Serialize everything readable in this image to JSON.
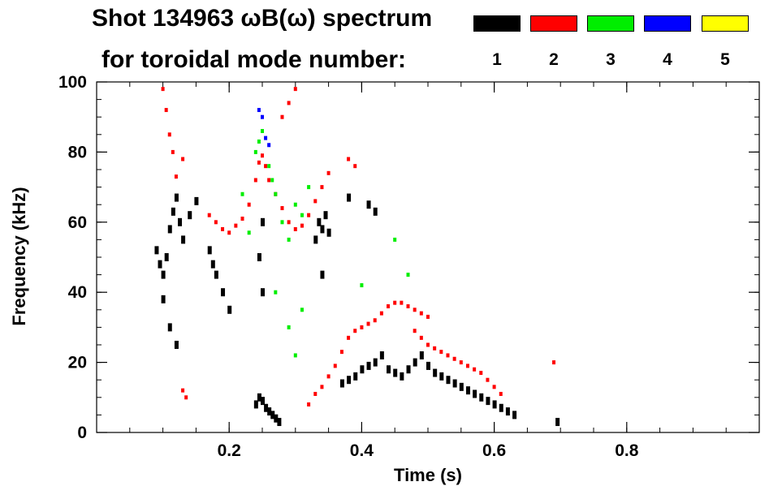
{
  "header": {
    "title_line1": "Shot 134963 ωB(ω) spectrum",
    "title_line2": "for toroidal mode number:"
  },
  "legend": [
    {
      "mode": "1",
      "color": "#000000"
    },
    {
      "mode": "2",
      "color": "#ff0000"
    },
    {
      "mode": "3",
      "color": "#00ee00"
    },
    {
      "mode": "4",
      "color": "#0000ff"
    },
    {
      "mode": "5",
      "color": "#ffff00"
    }
  ],
  "chart_data": {
    "type": "scatter",
    "title": "Shot 134963 ωB(ω) spectrum",
    "xlabel": "Time (s)",
    "ylabel": "Frequency (kHz)",
    "xlim": [
      0.0,
      1.0
    ],
    "ylim": [
      0,
      100
    ],
    "xticks": [
      0.2,
      0.4,
      0.6,
      0.8
    ],
    "xtick_labels": [
      "0.2",
      "0.4",
      "0.6",
      "0.8"
    ],
    "yticks": [
      0,
      20,
      40,
      60,
      80,
      100
    ],
    "ytick_labels": [
      "0",
      "20",
      "40",
      "60",
      "80",
      "100"
    ],
    "series": [
      {
        "name": "n=1",
        "color": "#000000",
        "points": [
          [
            0.09,
            52
          ],
          [
            0.095,
            48
          ],
          [
            0.1,
            45
          ],
          [
            0.105,
            50
          ],
          [
            0.11,
            58
          ],
          [
            0.115,
            63
          ],
          [
            0.12,
            67
          ],
          [
            0.125,
            60
          ],
          [
            0.13,
            55
          ],
          [
            0.14,
            62
          ],
          [
            0.15,
            66
          ],
          [
            0.1,
            38
          ],
          [
            0.11,
            30
          ],
          [
            0.12,
            25
          ],
          [
            0.17,
            52
          ],
          [
            0.175,
            48
          ],
          [
            0.18,
            45
          ],
          [
            0.19,
            40
          ],
          [
            0.2,
            35
          ],
          [
            0.24,
            8
          ],
          [
            0.245,
            10
          ],
          [
            0.25,
            9
          ],
          [
            0.255,
            7
          ],
          [
            0.26,
            6
          ],
          [
            0.265,
            5
          ],
          [
            0.27,
            4
          ],
          [
            0.275,
            3
          ],
          [
            0.25,
            60
          ],
          [
            0.245,
            50
          ],
          [
            0.25,
            40
          ],
          [
            0.33,
            55
          ],
          [
            0.335,
            60
          ],
          [
            0.34,
            58
          ],
          [
            0.345,
            62
          ],
          [
            0.35,
            57
          ],
          [
            0.34,
            45
          ],
          [
            0.37,
            14
          ],
          [
            0.38,
            15
          ],
          [
            0.39,
            16
          ],
          [
            0.4,
            18
          ],
          [
            0.41,
            19
          ],
          [
            0.42,
            20
          ],
          [
            0.43,
            22
          ],
          [
            0.44,
            18
          ],
          [
            0.45,
            17
          ],
          [
            0.46,
            16
          ],
          [
            0.47,
            18
          ],
          [
            0.48,
            20
          ],
          [
            0.49,
            22
          ],
          [
            0.5,
            19
          ],
          [
            0.51,
            17
          ],
          [
            0.52,
            16
          ],
          [
            0.53,
            15
          ],
          [
            0.54,
            14
          ],
          [
            0.55,
            13
          ],
          [
            0.56,
            12
          ],
          [
            0.57,
            11
          ],
          [
            0.58,
            10
          ],
          [
            0.59,
            9
          ],
          [
            0.6,
            8
          ],
          [
            0.61,
            7
          ],
          [
            0.62,
            6
          ],
          [
            0.63,
            5
          ],
          [
            0.695,
            3
          ],
          [
            0.41,
            65
          ],
          [
            0.42,
            63
          ],
          [
            0.38,
            67
          ]
        ]
      },
      {
        "name": "n=2",
        "color": "#ff0000",
        "points": [
          [
            0.1,
            98
          ],
          [
            0.105,
            92
          ],
          [
            0.11,
            85
          ],
          [
            0.115,
            80
          ],
          [
            0.13,
            78
          ],
          [
            0.12,
            73
          ],
          [
            0.17,
            62
          ],
          [
            0.18,
            60
          ],
          [
            0.19,
            58
          ],
          [
            0.2,
            57
          ],
          [
            0.21,
            59
          ],
          [
            0.22,
            61
          ],
          [
            0.23,
            65
          ],
          [
            0.24,
            72
          ],
          [
            0.245,
            77
          ],
          [
            0.25,
            79
          ],
          [
            0.255,
            76
          ],
          [
            0.26,
            72
          ],
          [
            0.27,
            68
          ],
          [
            0.28,
            64
          ],
          [
            0.29,
            60
          ],
          [
            0.3,
            58
          ],
          [
            0.31,
            59
          ],
          [
            0.32,
            62
          ],
          [
            0.33,
            66
          ],
          [
            0.34,
            70
          ],
          [
            0.35,
            74
          ],
          [
            0.29,
            94
          ],
          [
            0.28,
            90
          ],
          [
            0.3,
            98
          ],
          [
            0.32,
            8
          ],
          [
            0.33,
            11
          ],
          [
            0.34,
            13
          ],
          [
            0.35,
            16
          ],
          [
            0.36,
            19
          ],
          [
            0.37,
            23
          ],
          [
            0.38,
            27
          ],
          [
            0.39,
            29
          ],
          [
            0.4,
            30
          ],
          [
            0.41,
            31
          ],
          [
            0.42,
            32
          ],
          [
            0.43,
            34
          ],
          [
            0.44,
            36
          ],
          [
            0.45,
            37
          ],
          [
            0.46,
            37
          ],
          [
            0.47,
            36
          ],
          [
            0.48,
            35
          ],
          [
            0.49,
            34
          ],
          [
            0.5,
            33
          ],
          [
            0.48,
            29
          ],
          [
            0.49,
            27
          ],
          [
            0.5,
            25
          ],
          [
            0.51,
            24
          ],
          [
            0.52,
            23
          ],
          [
            0.53,
            22
          ],
          [
            0.54,
            21
          ],
          [
            0.55,
            20
          ],
          [
            0.56,
            19
          ],
          [
            0.57,
            18
          ],
          [
            0.58,
            17
          ],
          [
            0.59,
            15
          ],
          [
            0.6,
            13
          ],
          [
            0.61,
            11
          ],
          [
            0.38,
            78
          ],
          [
            0.39,
            76
          ],
          [
            0.13,
            12
          ],
          [
            0.135,
            10
          ],
          [
            0.69,
            20
          ]
        ]
      },
      {
        "name": "n=3",
        "color": "#00ee00",
        "points": [
          [
            0.24,
            80
          ],
          [
            0.245,
            83
          ],
          [
            0.25,
            86
          ],
          [
            0.26,
            76
          ],
          [
            0.265,
            72
          ],
          [
            0.27,
            68
          ],
          [
            0.28,
            60
          ],
          [
            0.29,
            55
          ],
          [
            0.3,
            65
          ],
          [
            0.31,
            62
          ],
          [
            0.32,
            70
          ],
          [
            0.23,
            57
          ],
          [
            0.22,
            68
          ],
          [
            0.27,
            40
          ],
          [
            0.29,
            30
          ],
          [
            0.3,
            22
          ],
          [
            0.31,
            35
          ],
          [
            0.45,
            55
          ],
          [
            0.47,
            45
          ],
          [
            0.4,
            42
          ]
        ]
      },
      {
        "name": "n=4",
        "color": "#0000ff",
        "points": [
          [
            0.245,
            92
          ],
          [
            0.25,
            90
          ],
          [
            0.255,
            84
          ],
          [
            0.26,
            82
          ]
        ]
      },
      {
        "name": "n=5",
        "color": "#ffff00",
        "points": []
      }
    ]
  }
}
